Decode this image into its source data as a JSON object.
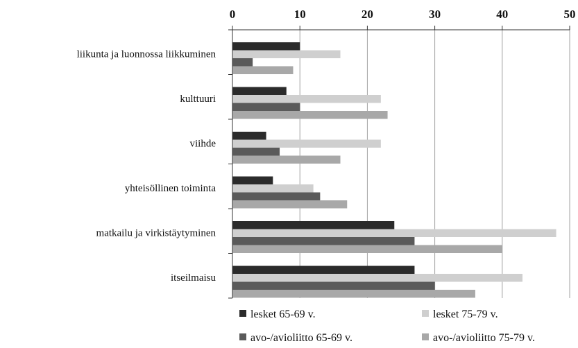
{
  "chart_data": {
    "type": "bar",
    "orientation": "horizontal",
    "categories": [
      "liikunta ja luonnossa liikkuminen",
      "kulttuuri",
      "viihde",
      "yhteisöllinen toiminta",
      "matkailu ja virkistäytyminen",
      "itseilmaisu"
    ],
    "series": [
      {
        "name": "lesket 65-69 v.",
        "color": "#2b2b2b",
        "values": [
          10,
          8,
          5,
          6,
          24,
          27
        ]
      },
      {
        "name": "lesket 75-79 v.",
        "color": "#cfcfcf",
        "values": [
          16,
          22,
          22,
          12,
          48,
          43
        ]
      },
      {
        "name": "avo-/avioliitto 65-69 v.",
        "color": "#5a5a5a",
        "values": [
          3,
          10,
          7,
          13,
          27,
          30
        ]
      },
      {
        "name": "avo-/avioliitto 75-79 v.",
        "color": "#a8a8a8",
        "values": [
          9,
          23,
          16,
          17,
          40,
          36
        ]
      }
    ],
    "xlim": [
      0,
      50
    ],
    "xticks": [
      0,
      10,
      20,
      30,
      40,
      50
    ],
    "xaxis_position": "top",
    "grid": true,
    "legend_position": "bottom"
  }
}
